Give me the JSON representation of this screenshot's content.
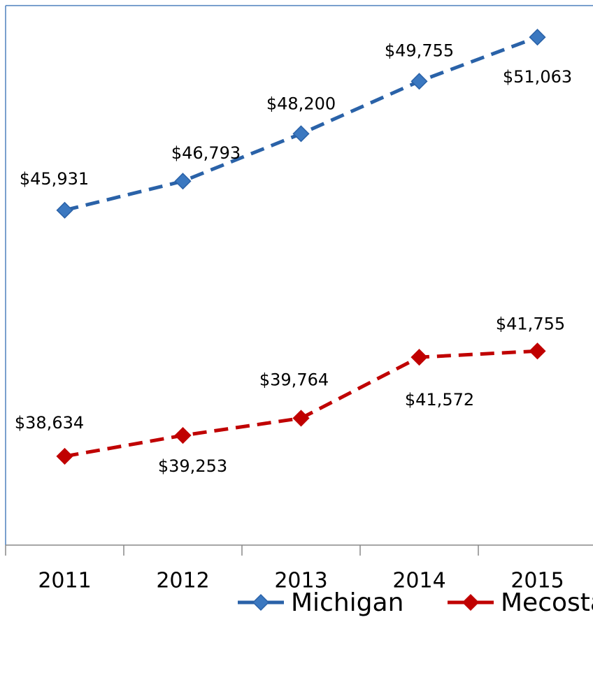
{
  "chart_data": {
    "type": "line",
    "categories": [
      "2011",
      "2012",
      "2013",
      "2014",
      "2015"
    ],
    "series": [
      {
        "name": "Michigan",
        "color": "#2a62a8",
        "values": [
          45931,
          46793,
          48200,
          49755,
          51063
        ],
        "value_labels": [
          "$45,931",
          "$46,793",
          "$48,200",
          "$49,755",
          "$51,063"
        ]
      },
      {
        "name": "Mecosta",
        "color": "#c00000",
        "values": [
          38634,
          39253,
          39764,
          41572,
          41755
        ],
        "value_labels": [
          "$38,634",
          "$39,253",
          "$39,764",
          "$41,572",
          "$41,755"
        ]
      }
    ],
    "ylim": [
      36000,
      52000
    ],
    "legend": "bottom"
  }
}
